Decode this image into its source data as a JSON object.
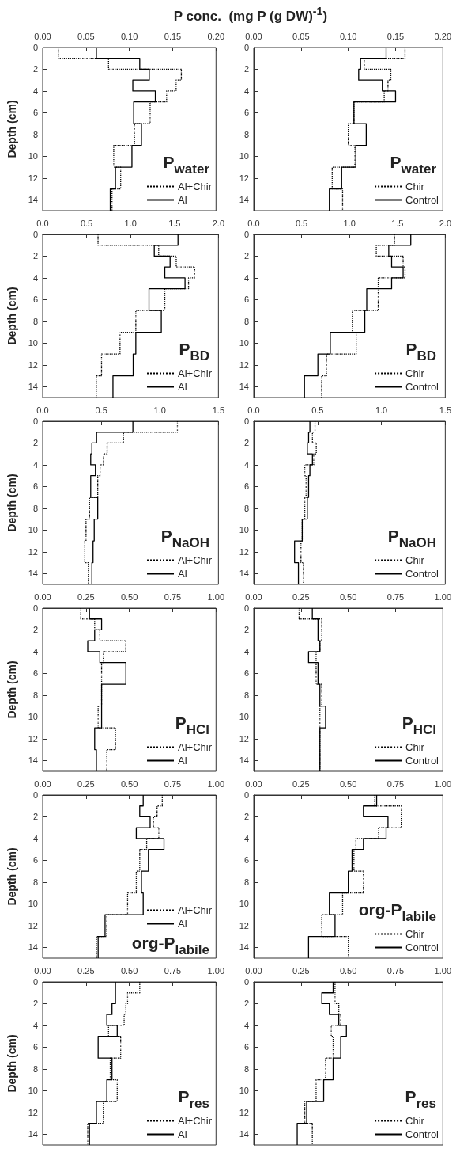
{
  "chart_data": [
    {
      "type": "step",
      "title": "P conc.  (mg P (g DW)$^{-1}$)",
      "ylabel": "Depth (cm)",
      "orientation": "horizontal",
      "x": [
        0,
        1,
        2,
        3,
        4,
        5,
        7,
        9,
        11,
        13,
        15
      ],
      "xlim": [
        0,
        0.2
      ],
      "xticks": [
        {
          "value": 0,
          "label": "0.00"
        },
        0.05,
        {
          "value": 0.1,
          "label": "0.10"
        },
        0.15,
        {
          "value": 0.2,
          "label": "0.20"
        }
      ],
      "ylim": [
        15,
        0
      ],
      "yticks": [
        0,
        2,
        4,
        6,
        8,
        10,
        12,
        14
      ],
      "legend": "bottom right",
      "annotations": [
        "P$_{water}$"
      ],
      "series": [
        {
          "name": "Al+Chir",
          "color": "#000000",
          "line_style": "dotted",
          "values": [
            0.018,
            0.076,
            0.16,
            0.154,
            0.143,
            0.124,
            0.106,
            0.082,
            0.09,
            0.08,
            0.08
          ]
        },
        {
          "name": "Al",
          "color": "#000000",
          "line_style": "solid",
          "values": [
            0.062,
            0.112,
            0.123,
            0.104,
            0.13,
            0.105,
            0.114,
            0.103,
            0.084,
            0.078,
            0.078
          ]
        }
      ]
    },
    {
      "type": "step",
      "orientation": "horizontal",
      "x": [
        0,
        1,
        2,
        3,
        4,
        5,
        7,
        9,
        11,
        13,
        15
      ],
      "xlim": [
        0,
        0.2
      ],
      "xticks": [
        {
          "value": 0,
          "label": "0.00"
        },
        0.05,
        {
          "value": 0.1,
          "label": "0.10"
        },
        0.15,
        {
          "value": 0.2,
          "label": "0.20"
        }
      ],
      "ylim": [
        15,
        0
      ],
      "yticks": [
        0,
        2,
        4,
        6,
        8,
        10,
        12,
        14
      ],
      "legend": "bottom right",
      "annotations": [
        "P$_{water}$"
      ],
      "series": [
        {
          "name": "Chir",
          "color": "#000000",
          "line_style": "dotted",
          "values": [
            0.16,
            0.117,
            0.145,
            0.142,
            0.138,
            0.106,
            0.1,
            0.107,
            0.083,
            0.094,
            0.094
          ]
        },
        {
          "name": "Control",
          "color": "#000000",
          "line_style": "solid",
          "values": [
            0.14,
            0.113,
            0.111,
            0.136,
            0.15,
            0.106,
            0.119,
            0.108,
            0.093,
            0.08,
            0.08
          ]
        }
      ]
    },
    {
      "type": "step",
      "ylabel": "Depth (cm)",
      "orientation": "horizontal",
      "x": [
        0,
        1,
        2,
        3,
        4,
        5,
        7,
        9,
        11,
        13,
        15
      ],
      "xlim": [
        0,
        2
      ],
      "xticks": [
        {
          "value": 0,
          "label": "0.0"
        },
        0.5,
        {
          "value": 1,
          "label": "1.0"
        },
        1.5,
        {
          "value": 2,
          "label": "2.0"
        }
      ],
      "ylim": [
        15,
        0
      ],
      "yticks": [
        0,
        2,
        4,
        6,
        8,
        10,
        12,
        14
      ],
      "legend": "bottom right",
      "annotations": [
        "P$_{BD}$"
      ],
      "series": [
        {
          "name": "Al+Chir",
          "color": "#000000",
          "line_style": "dotted",
          "values": [
            0.63,
            1.32,
            1.52,
            1.73,
            1.66,
            1.39,
            1.06,
            0.88,
            0.67,
            0.61,
            0.61
          ]
        },
        {
          "name": "Al",
          "color": "#000000",
          "line_style": "solid",
          "values": [
            1.54,
            1.27,
            1.45,
            1.39,
            1.62,
            1.21,
            1.35,
            1.06,
            1.03,
            0.8,
            0.8
          ]
        }
      ]
    },
    {
      "type": "step",
      "orientation": "horizontal",
      "x": [
        0,
        1,
        2,
        3,
        4,
        5,
        7,
        9,
        11,
        13,
        15
      ],
      "xlim": [
        0,
        2
      ],
      "xticks": [
        {
          "value": 0,
          "label": "0.0"
        },
        0.5,
        {
          "value": 1,
          "label": "1.0"
        },
        1.5,
        {
          "value": 2,
          "label": "2.0"
        }
      ],
      "ylim": [
        15,
        0
      ],
      "yticks": [
        0,
        2,
        4,
        6,
        8,
        10,
        12,
        14
      ],
      "legend": "bottom right",
      "annotations": [
        "P$_{BD}$"
      ],
      "series": [
        {
          "name": "Chir",
          "color": "#000000",
          "line_style": "dotted",
          "values": [
            1.47,
            1.28,
            1.56,
            1.58,
            1.3,
            1.3,
            1.03,
            1.07,
            0.76,
            0.71,
            0.71
          ]
        },
        {
          "name": "Control",
          "color": "#000000",
          "line_style": "solid",
          "values": [
            1.64,
            1.41,
            1.44,
            1.56,
            1.44,
            1.18,
            1.16,
            0.8,
            0.67,
            0.53,
            0.53
          ]
        }
      ]
    },
    {
      "type": "step",
      "ylabel": "Depth (cm)",
      "orientation": "horizontal",
      "x": [
        0,
        1,
        2,
        3,
        4,
        5,
        7,
        9,
        11,
        13,
        15
      ],
      "xlim": [
        0,
        1.5
      ],
      "xticks": [
        {
          "value": 0,
          "label": "0.0"
        },
        0.5,
        {
          "value": 1,
          "label": "1.0"
        },
        1.5
      ],
      "ylim": [
        15,
        0
      ],
      "yticks": [
        0,
        2,
        4,
        6,
        8,
        10,
        12,
        14
      ],
      "legend": "bottom right",
      "annotations": [
        "P$_{NaOH}$"
      ],
      "series": [
        {
          "name": "Al+Chir",
          "color": "#000000",
          "line_style": "dotted",
          "values": [
            1.15,
            0.69,
            0.55,
            0.52,
            0.49,
            0.47,
            0.4,
            0.37,
            0.36,
            0.39,
            0.39
          ]
        },
        {
          "name": "Al",
          "color": "#000000",
          "line_style": "solid",
          "values": [
            0.77,
            0.46,
            0.42,
            0.41,
            0.45,
            0.41,
            0.47,
            0.44,
            0.43,
            0.42,
            0.42
          ]
        }
      ]
    },
    {
      "type": "step",
      "orientation": "horizontal",
      "x": [
        0,
        1,
        2,
        3,
        4,
        5,
        7,
        9,
        11,
        13,
        15
      ],
      "xlim": [
        0,
        1.5
      ],
      "xticks": [
        {
          "value": 0,
          "label": "0.0"
        },
        0.5,
        {
          "value": 1,
          "label": "1.0"
        },
        1.5
      ],
      "ylim": [
        15,
        0
      ],
      "yticks": [
        0,
        2,
        4,
        6,
        8,
        10,
        12,
        14
      ],
      "legend": "bottom right",
      "annotations": [
        "P$_{NaOH}$"
      ],
      "series": [
        {
          "name": "Chir",
          "color": "#000000",
          "line_style": "dotted",
          "values": [
            0.48,
            0.46,
            0.49,
            0.47,
            0.4,
            0.41,
            0.4,
            0.38,
            0.37,
            0.39,
            0.39
          ]
        },
        {
          "name": "Control",
          "color": "#000000",
          "line_style": "solid",
          "values": [
            0.44,
            0.43,
            0.42,
            0.46,
            0.44,
            0.43,
            0.42,
            0.38,
            0.32,
            0.35,
            0.35
          ]
        }
      ]
    },
    {
      "type": "step",
      "ylabel": "Depth (cm)",
      "orientation": "horizontal",
      "x": [
        0,
        1,
        2,
        3,
        4,
        5,
        7,
        9,
        11,
        13,
        15
      ],
      "xlim": [
        0,
        1
      ],
      "xticks": [
        {
          "value": 0,
          "label": "0.00"
        },
        0.25,
        {
          "value": 0.5,
          "label": "0.50"
        },
        0.75,
        {
          "value": 1,
          "label": "1.00"
        }
      ],
      "ylim": [
        15,
        0
      ],
      "yticks": [
        0,
        2,
        4,
        6,
        8,
        10,
        12,
        14
      ],
      "legend": "bottom right",
      "annotations": [
        "P$_{HCl}$"
      ],
      "series": [
        {
          "name": "Al+Chir",
          "color": "#000000",
          "line_style": "dotted",
          "values": [
            0.22,
            0.3,
            0.33,
            0.48,
            0.35,
            0.34,
            0.34,
            0.32,
            0.42,
            0.37,
            0.37
          ]
        },
        {
          "name": "Al",
          "color": "#000000",
          "line_style": "solid",
          "values": [
            0.27,
            0.34,
            0.3,
            0.26,
            0.33,
            0.48,
            0.34,
            0.34,
            0.3,
            0.31,
            0.31
          ]
        }
      ]
    },
    {
      "type": "step",
      "orientation": "horizontal",
      "x": [
        0,
        1,
        2,
        3,
        4,
        5,
        7,
        9,
        11,
        13,
        15
      ],
      "xlim": [
        0,
        1
      ],
      "xticks": [
        {
          "value": 0,
          "label": "0.00"
        },
        0.25,
        {
          "value": 0.5,
          "label": "0.50"
        },
        0.75,
        {
          "value": 1,
          "label": "1.00"
        }
      ],
      "ylim": [
        15,
        0
      ],
      "yticks": [
        0,
        2,
        4,
        6,
        8,
        10,
        12,
        14
      ],
      "legend": "bottom right",
      "annotations": [
        "P$_{HCl}$"
      ],
      "series": [
        {
          "name": "Chir",
          "color": "#000000",
          "line_style": "dotted",
          "values": [
            0.24,
            0.36,
            0.36,
            0.35,
            0.33,
            0.33,
            0.36,
            0.35,
            0.35,
            0.35,
            0.35
          ]
        },
        {
          "name": "Control",
          "color": "#000000",
          "line_style": "solid",
          "values": [
            0.31,
            0.34,
            0.34,
            0.35,
            0.29,
            0.34,
            0.35,
            0.38,
            0.35,
            0.35,
            0.35
          ]
        }
      ]
    },
    {
      "type": "step",
      "ylabel": "Depth (cm)",
      "orientation": "horizontal",
      "x": [
        0,
        1,
        2,
        3,
        4,
        5,
        7,
        9,
        11,
        13,
        15
      ],
      "xlim": [
        0,
        1
      ],
      "xticks": [
        {
          "value": 0,
          "label": "0.00"
        },
        0.25,
        {
          "value": 0.5,
          "label": "0.50"
        },
        0.75,
        {
          "value": 1,
          "label": "1.00"
        }
      ],
      "ylim": [
        15,
        0
      ],
      "yticks": [
        0,
        2,
        4,
        6,
        8,
        10,
        12,
        14
      ],
      "legend": "bottom right",
      "annotations": [
        "org-P$_{labile}$"
      ],
      "series": [
        {
          "name": "Al+Chir",
          "color": "#000000",
          "line_style": "dotted",
          "values": [
            0.69,
            0.66,
            0.64,
            0.67,
            0.6,
            0.56,
            0.54,
            0.49,
            0.37,
            0.31,
            0.31
          ]
        },
        {
          "name": "Al",
          "color": "#000000",
          "line_style": "solid",
          "values": [
            0.58,
            0.56,
            0.62,
            0.54,
            0.7,
            0.61,
            0.57,
            0.58,
            0.36,
            0.32,
            0.32
          ]
        }
      ]
    },
    {
      "type": "step",
      "orientation": "horizontal",
      "x": [
        0,
        1,
        2,
        3,
        4,
        5,
        7,
        9,
        11,
        13,
        15
      ],
      "xlim": [
        0,
        1
      ],
      "xticks": [
        {
          "value": 0,
          "label": "0.00"
        },
        0.25,
        {
          "value": 0.5,
          "label": "0.50"
        },
        0.75,
        {
          "value": 1,
          "label": "1.00"
        }
      ],
      "ylim": [
        15,
        0
      ],
      "yticks": [
        0,
        2,
        4,
        6,
        8,
        10,
        12,
        14
      ],
      "legend": "bottom right",
      "annotations": [
        "org-P$_{labile}$"
      ],
      "series": [
        {
          "name": "Chir",
          "color": "#000000",
          "line_style": "dotted",
          "values": [
            0.64,
            0.78,
            0.78,
            0.66,
            0.54,
            0.53,
            0.58,
            0.47,
            0.36,
            0.5,
            0.5
          ]
        },
        {
          "name": "Control",
          "color": "#000000",
          "line_style": "solid",
          "values": [
            0.65,
            0.58,
            0.71,
            0.7,
            0.58,
            0.52,
            0.5,
            0.4,
            0.43,
            0.29,
            0.29
          ]
        }
      ]
    },
    {
      "type": "step",
      "ylabel": "Depth (cm)",
      "orientation": "horizontal",
      "x": [
        0,
        1,
        2,
        3,
        4,
        5,
        7,
        9,
        11,
        13,
        15
      ],
      "xlim": [
        0,
        1
      ],
      "xticks": [
        {
          "value": 0,
          "label": "0.00"
        },
        0.25,
        {
          "value": 0.5,
          "label": "0.50"
        },
        0.75,
        {
          "value": 1,
          "label": "1.00"
        }
      ],
      "ylim": [
        15,
        0
      ],
      "yticks": [
        0,
        2,
        4,
        6,
        8,
        10,
        12,
        14
      ],
      "legend": "bottom right",
      "annotations": [
        "P$_{res}$"
      ],
      "series": [
        {
          "name": "Al+Chir",
          "color": "#000000",
          "line_style": "dotted",
          "values": [
            0.56,
            0.49,
            0.48,
            0.47,
            0.38,
            0.45,
            0.39,
            0.43,
            0.35,
            0.26,
            0.26
          ]
        },
        {
          "name": "Al",
          "color": "#000000",
          "line_style": "solid",
          "values": [
            0.42,
            0.42,
            0.4,
            0.37,
            0.43,
            0.32,
            0.4,
            0.37,
            0.31,
            0.27,
            0.27
          ]
        }
      ]
    },
    {
      "type": "step",
      "orientation": "horizontal",
      "x": [
        0,
        1,
        2,
        3,
        4,
        5,
        7,
        9,
        11,
        13,
        15
      ],
      "xlim": [
        0,
        1
      ],
      "xticks": [
        {
          "value": 0,
          "label": "0.00"
        },
        0.25,
        {
          "value": 0.5,
          "label": "0.50"
        },
        0.75,
        {
          "value": 1,
          "label": "1.00"
        }
      ],
      "ylim": [
        15,
        0
      ],
      "yticks": [
        0,
        2,
        4,
        6,
        8,
        10,
        12,
        14
      ],
      "legend": "bottom right",
      "annotations": [
        "P$_{res}$"
      ],
      "series": [
        {
          "name": "Chir",
          "color": "#000000",
          "line_style": "dotted",
          "values": [
            0.43,
            0.43,
            0.45,
            0.46,
            0.41,
            0.42,
            0.38,
            0.33,
            0.27,
            0.31,
            0.31
          ]
        },
        {
          "name": "Control",
          "color": "#000000",
          "line_style": "solid",
          "values": [
            0.42,
            0.36,
            0.4,
            0.45,
            0.49,
            0.46,
            0.42,
            0.37,
            0.28,
            0.23,
            0.23
          ]
        }
      ]
    }
  ]
}
